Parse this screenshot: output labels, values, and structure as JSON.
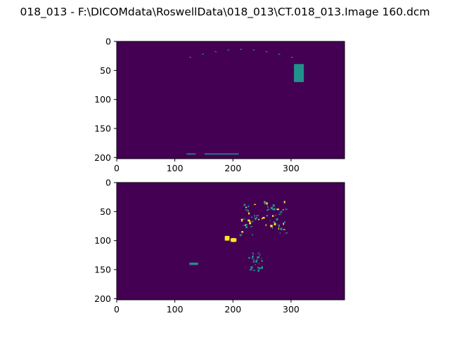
{
  "title": "018_013 - F:\\DICOMdata\\RoswellData\\018_013\\CT.018_013.Image 160.dcm",
  "colors": {
    "background": "#440154",
    "mid": "#21918c",
    "high": "#fde725",
    "axis": "#000000"
  },
  "chart_data": [
    {
      "type": "heatmap",
      "colormap": "viridis",
      "xlim": [
        0,
        392
      ],
      "ylim": [
        0,
        202
      ],
      "y_inverted": true,
      "xticks": [
        "0",
        "100",
        "200",
        "300"
      ],
      "yticks": [
        "0",
        "50",
        "100",
        "150",
        "200"
      ],
      "bright_features": [
        {
          "x": [
            120,
            136
          ],
          "y": [
            193,
            194
          ],
          "value": "mid"
        },
        {
          "x": [
            151,
            210
          ],
          "y": [
            193,
            194
          ],
          "value": "mid"
        },
        {
          "x": [
            305,
            322
          ],
          "y": [
            39,
            70
          ],
          "value": "mid"
        },
        {
          "x": [
            125,
            300
          ],
          "y": [
            13,
            28
          ],
          "value": "mid"
        }
      ]
    },
    {
      "type": "heatmap",
      "colormap": "viridis",
      "xlim": [
        0,
        392
      ],
      "ylim": [
        0,
        202
      ],
      "y_inverted": true,
      "xticks": [
        "0",
        "100",
        "200",
        "300"
      ],
      "yticks": [
        "0",
        "50",
        "100",
        "150",
        "200"
      ],
      "bright_features": [
        {
          "x": [
            186,
            194
          ],
          "y": [
            92,
            100
          ],
          "value": "high"
        },
        {
          "x": [
            196,
            206
          ],
          "y": [
            96,
            102
          ],
          "value": "high"
        },
        {
          "x": [
            210,
            290
          ],
          "y": [
            30,
            90
          ],
          "value": "high"
        },
        {
          "x": [
            125,
            140
          ],
          "y": [
            138,
            142
          ],
          "value": "mid"
        },
        {
          "x": [
            225,
            250
          ],
          "y": [
            120,
            152
          ],
          "value": "mid"
        }
      ]
    }
  ]
}
